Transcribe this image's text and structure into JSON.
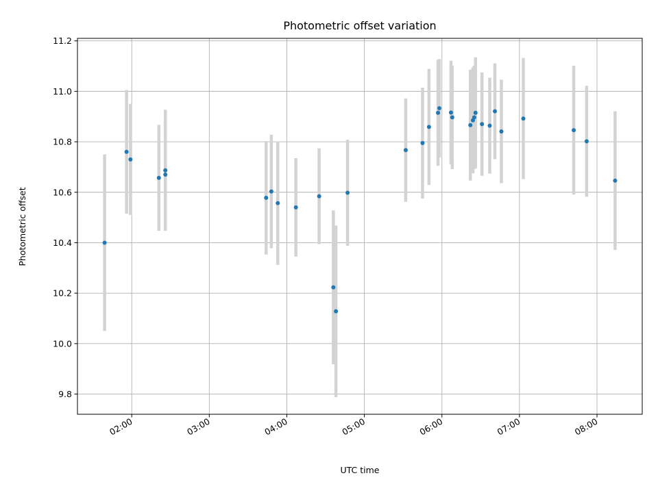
{
  "chart_data": {
    "type": "scatter",
    "title": "Photometric offset variation",
    "xlabel": "UTC time",
    "ylabel": "Photometric offset",
    "x_tick_labels": [
      "02:00",
      "03:00",
      "04:00",
      "05:00",
      "06:00",
      "07:00",
      "08:00"
    ],
    "y_tick_labels": [
      "9.8",
      "10.0",
      "10.2",
      "10.4",
      "10.6",
      "10.8",
      "11.0",
      "11.2"
    ],
    "xlim": [
      "01:18",
      "08:35"
    ],
    "ylim": [
      9.72,
      11.21
    ],
    "grid": true,
    "marker_color": "#1f77b4",
    "errorbar_color": "#d3d3d3",
    "points": [
      {
        "x": "01:39",
        "y": 10.4,
        "err": 0.35
      },
      {
        "x": "01:56",
        "y": 10.76,
        "err": 0.245
      },
      {
        "x": "01:59",
        "y": 10.73,
        "err": 0.22
      },
      {
        "x": "02:21",
        "y": 10.657,
        "err": 0.21
      },
      {
        "x": "02:26",
        "y": 10.67,
        "err": 0.21
      },
      {
        "x": "02:26",
        "y": 10.687,
        "err": 0.24
      },
      {
        "x": "03:44",
        "y": 10.578,
        "err": 0.225
      },
      {
        "x": "03:48",
        "y": 10.603,
        "err": 0.225
      },
      {
        "x": "03:53",
        "y": 10.557,
        "err": 0.245
      },
      {
        "x": "04:07",
        "y": 10.54,
        "err": 0.195
      },
      {
        "x": "04:25",
        "y": 10.584,
        "err": 0.19
      },
      {
        "x": "04:36",
        "y": 10.223,
        "err": 0.305
      },
      {
        "x": "04:38",
        "y": 10.128,
        "err": 0.34
      },
      {
        "x": "04:47",
        "y": 10.598,
        "err": 0.21
      },
      {
        "x": "05:32",
        "y": 10.767,
        "err": 0.205
      },
      {
        "x": "05:45",
        "y": 10.795,
        "err": 0.22
      },
      {
        "x": "05:50",
        "y": 10.859,
        "err": 0.23
      },
      {
        "x": "05:57",
        "y": 10.915,
        "err": 0.21
      },
      {
        "x": "05:58",
        "y": 10.933,
        "err": 0.195
      },
      {
        "x": "06:07",
        "y": 10.916,
        "err": 0.205
      },
      {
        "x": "06:08",
        "y": 10.897,
        "err": 0.205
      },
      {
        "x": "06:22",
        "y": 10.866,
        "err": 0.22
      },
      {
        "x": "06:24",
        "y": 10.885,
        "err": 0.21
      },
      {
        "x": "06:25",
        "y": 10.897,
        "err": 0.205
      },
      {
        "x": "06:26",
        "y": 10.915,
        "err": 0.22
      },
      {
        "x": "06:31",
        "y": 10.87,
        "err": 0.205
      },
      {
        "x": "06:37",
        "y": 10.864,
        "err": 0.19
      },
      {
        "x": "06:41",
        "y": 10.921,
        "err": 0.19
      },
      {
        "x": "06:46",
        "y": 10.841,
        "err": 0.205
      },
      {
        "x": "07:03",
        "y": 10.892,
        "err": 0.24
      },
      {
        "x": "07:42",
        "y": 10.846,
        "err": 0.255
      },
      {
        "x": "07:52",
        "y": 10.802,
        "err": 0.22
      },
      {
        "x": "08:14",
        "y": 10.646,
        "err": 0.275
      }
    ]
  }
}
